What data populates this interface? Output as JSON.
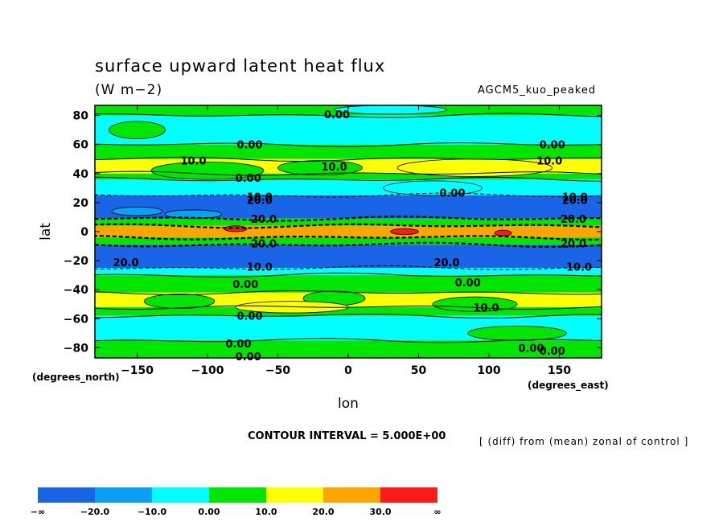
{
  "header": {
    "title": "surface upward latent heat flux",
    "units": "(W m−2)",
    "model": "AGCM5_kuo_peaked"
  },
  "footer": {
    "contour_interval": "CONTOUR INTERVAL = 5.000E+00",
    "description": "[ (diff) from (mean) zonal of control ]"
  },
  "chart_data": {
    "type": "heatmap",
    "title": "surface upward latent heat flux",
    "xlabel": "lon",
    "ylabel": "lat",
    "x_unit_label": "(degrees_east)",
    "y_unit_label": "(degrees_north)",
    "xlim": [
      -180,
      180
    ],
    "ylim": [
      -87,
      87
    ],
    "xticks": [
      -150,
      -100,
      -50,
      0,
      50,
      100,
      150
    ],
    "xtick_labels": [
      "−150",
      "−100",
      "−50",
      "0",
      "50",
      "100",
      "150"
    ],
    "yticks": [
      80,
      60,
      40,
      20,
      0,
      -20,
      -40,
      -60,
      -80
    ],
    "ytick_labels": [
      "80",
      "60",
      "40",
      "20",
      "0",
      "−20",
      "−40",
      "−60",
      "−80"
    ],
    "colorbar": {
      "levels": [
        "−∞",
        "−20.0",
        "−10.0",
        "0.00",
        "10.0",
        "20.0",
        "30.0",
        "∞"
      ],
      "colors": [
        "#1a64e8",
        "#0aa0f5",
        "#00ffff",
        "#00e600",
        "#ffff00",
        "#ffa500",
        "#ff1a1a"
      ]
    },
    "zonal_bands": [
      {
        "lat_from": 87,
        "lat_to": 80,
        "class": 3
      },
      {
        "lat_from": 80,
        "lat_to": 60,
        "class": 2
      },
      {
        "lat_from": 60,
        "lat_to": 50,
        "class": 3
      },
      {
        "lat_from": 50,
        "lat_to": 40,
        "class": 4
      },
      {
        "lat_from": 40,
        "lat_to": 36,
        "class": 3
      },
      {
        "lat_from": 36,
        "lat_to": 25,
        "class": 2
      },
      {
        "lat_from": 25,
        "lat_to": 9,
        "class": 0
      },
      {
        "lat_from": 9,
        "lat_to": 4,
        "class": 3
      },
      {
        "lat_from": 4,
        "lat_to": -4,
        "class": 5
      },
      {
        "lat_from": -4,
        "lat_to": -9,
        "class": 3
      },
      {
        "lat_from": -9,
        "lat_to": -25,
        "class": 0
      },
      {
        "lat_from": -25,
        "lat_to": -30,
        "class": 2
      },
      {
        "lat_from": -30,
        "lat_to": -42,
        "class": 3
      },
      {
        "lat_from": -42,
        "lat_to": -52,
        "class": 4
      },
      {
        "lat_from": -52,
        "lat_to": -58,
        "class": 3
      },
      {
        "lat_from": -58,
        "lat_to": -75,
        "class": 2
      },
      {
        "lat_from": -75,
        "lat_to": -87,
        "class": 3
      }
    ],
    "contour_labels": [
      {
        "text": "0.00",
        "lon": -8,
        "lat": 81
      },
      {
        "text": "0.00",
        "lon": -70,
        "lat": 60
      },
      {
        "text": "0.00",
        "lon": 145,
        "lat": 60
      },
      {
        "text": "10.0",
        "lon": -110,
        "lat": 49
      },
      {
        "text": "10.0",
        "lon": -10,
        "lat": 45
      },
      {
        "text": "10.0",
        "lon": 143,
        "lat": 49
      },
      {
        "text": "0.00",
        "lon": -71,
        "lat": 37
      },
      {
        "text": "0.00",
        "lon": 74,
        "lat": 27
      },
      {
        "text": "10.0",
        "lon": -63,
        "lat": 24
      },
      {
        "text": "20.0",
        "lon": -63,
        "lat": 22
      },
      {
        "text": "10.0",
        "lon": 161,
        "lat": 24
      },
      {
        "text": "20.0",
        "lon": 161,
        "lat": 22
      },
      {
        "text": "20.0",
        "lon": -60,
        "lat": 9
      },
      {
        "text": "20.0",
        "lon": 160,
        "lat": 9
      },
      {
        "text": "20.0",
        "lon": -60,
        "lat": -8
      },
      {
        "text": "20.0",
        "lon": 160,
        "lat": -8
      },
      {
        "text": "20.0",
        "lon": -158,
        "lat": -21
      },
      {
        "text": "10.0",
        "lon": -63,
        "lat": -24
      },
      {
        "text": "20.0",
        "lon": 70,
        "lat": -21
      },
      {
        "text": "10.0",
        "lon": 164,
        "lat": -24
      },
      {
        "text": "0.00",
        "lon": -73,
        "lat": -36
      },
      {
        "text": "0.00",
        "lon": 85,
        "lat": -35
      },
      {
        "text": "10.0",
        "lon": 98,
        "lat": -52
      },
      {
        "text": "0.00",
        "lon": -70,
        "lat": -58
      },
      {
        "text": "0.00",
        "lon": -78,
        "lat": -77
      },
      {
        "text": "0.00",
        "lon": 130,
        "lat": -80
      },
      {
        "text": "0.00",
        "lon": 145,
        "lat": -82
      },
      {
        "text": "0.00",
        "lon": -71,
        "lat": -86
      }
    ]
  }
}
